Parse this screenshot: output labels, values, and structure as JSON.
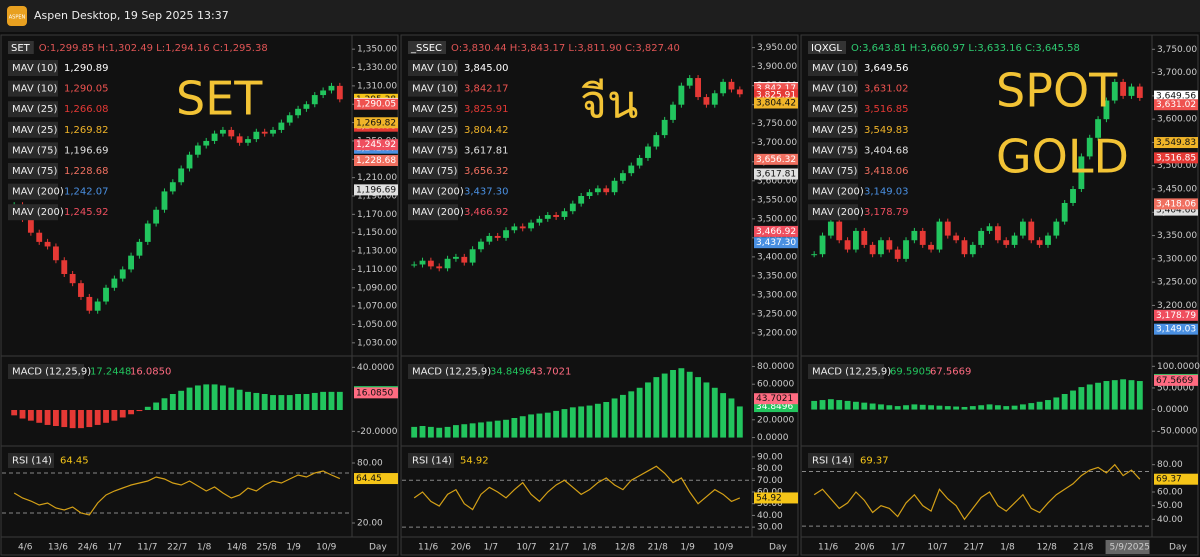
{
  "window": {
    "title": "Aspen Desktop, 19 Sep 2025 13:37",
    "logo": "ASPEN"
  },
  "panels": [
    {
      "symbol": "SET",
      "ohlc": "O:1,299.85 H:1,302.49 L:1,294.16 C:1,295.38",
      "ohlc_color": "#e05555",
      "big_label": [
        "SET"
      ],
      "close": {
        "value": 1295.38,
        "label": "1,295.38",
        "color": "#f5c518"
      },
      "mav": [
        {
          "name": "MAV (10)",
          "label": "1,290.89",
          "value": 1290.89,
          "color": "#ffffff"
        },
        {
          "name": "MAV (10)",
          "label": "1,290.05",
          "value": 1290.05,
          "color": "#ef5350"
        },
        {
          "name": "MAV (25)",
          "label": "1,266.08",
          "value": 1266.08,
          "color": "#e53935"
        },
        {
          "name": "MAV (25)",
          "label": "1,269.82",
          "value": 1269.82,
          "color": "#f0b429"
        },
        {
          "name": "MAV (75)",
          "label": "1,196.69",
          "value": 1196.69,
          "color": "#e0e0e0"
        },
        {
          "name": "MAV (75)",
          "label": "1,228.68",
          "value": 1228.68,
          "color": "#f07060"
        },
        {
          "name": "MAV (200)",
          "label": "1,242.07",
          "value": 1242.07,
          "color": "#4a90e2"
        },
        {
          "name": "MAV (200)",
          "label": "1,245.92",
          "value": 1245.92,
          "color": "#ef4f5f"
        }
      ],
      "ylim": [
        1020,
        1360
      ],
      "yticks": [
        {
          "value": 1350,
          "label": "1,350.00"
        },
        {
          "value": 1330,
          "label": "1,330.00"
        },
        {
          "value": 1310,
          "label": "1,310.00"
        },
        {
          "value": 1290,
          "label": "1,290.00"
        },
        {
          "value": 1270,
          "label": "1,270.00"
        },
        {
          "value": 1250,
          "label": "1,250.00"
        },
        {
          "value": 1230,
          "label": "1,230.00"
        },
        {
          "value": 1210,
          "label": "1,210.00"
        },
        {
          "value": 1190,
          "label": "1,190.00"
        },
        {
          "value": 1170,
          "label": "1,170.00"
        },
        {
          "value": 1150,
          "label": "1,150.00"
        },
        {
          "value": 1130,
          "label": "1,130.00"
        },
        {
          "value": 1110,
          "label": "1,110.00"
        },
        {
          "value": 1090,
          "label": "1,090.00"
        },
        {
          "value": 1070,
          "label": "1,070.00"
        },
        {
          "value": 1050,
          "label": "1,050.00"
        },
        {
          "value": 1030,
          "label": "1,030.00"
        }
      ],
      "closes": [
        1180,
        1165,
        1150,
        1140,
        1135,
        1120,
        1105,
        1095,
        1080,
        1065,
        1075,
        1090,
        1100,
        1110,
        1125,
        1140,
        1160,
        1175,
        1195,
        1205,
        1220,
        1235,
        1245,
        1250,
        1258,
        1262,
        1255,
        1248,
        1252,
        1260,
        1258,
        1262,
        1270,
        1278,
        1285,
        1290,
        1300,
        1305,
        1310,
        1295.38
      ],
      "macd": {
        "name": "MACD (12,25,9)",
        "macd": {
          "value": 17.2448,
          "label": "17.2448"
        },
        "signal": {
          "value": 16.085,
          "label": "16.0850"
        },
        "ylim": [
          -30,
          45
        ],
        "yticks": [
          {
            "value": 40,
            "label": "40.0000"
          },
          {
            "value": -20,
            "label": "-20.0000"
          }
        ],
        "hist": [
          -5,
          -8,
          -10,
          -12,
          -14,
          -15,
          -16,
          -17,
          -17,
          -16,
          -14,
          -12,
          -10,
          -7,
          -4,
          -1,
          3,
          7,
          11,
          15,
          18,
          21,
          23,
          24,
          24,
          23,
          21,
          19,
          17,
          16,
          15,
          14,
          14,
          14,
          15,
          15,
          16,
          17,
          17,
          17
        ]
      },
      "rsi": {
        "name": "RSI (14)",
        "value": {
          "value": 64.45,
          "label": "64.45"
        },
        "ylim": [
          10,
          92
        ],
        "yticks": [
          {
            "value": 80,
            "label": "80.00"
          },
          {
            "value": 20,
            "label": "20.00"
          }
        ],
        "bands": [
          70,
          30
        ],
        "values": [
          50,
          45,
          42,
          38,
          40,
          35,
          33,
          36,
          30,
          28,
          40,
          48,
          52,
          55,
          58,
          60,
          62,
          66,
          64,
          60,
          58,
          62,
          57,
          52,
          56,
          50,
          45,
          48,
          55,
          52,
          58,
          62,
          60,
          64,
          68,
          66,
          70,
          72,
          68,
          64.45
        ]
      },
      "x_labels": [
        "4/6",
        "13/6",
        "24/6",
        "1/7",
        "11/7",
        "22/7",
        "1/8",
        "14/8",
        "25/8",
        "1/9",
        "10/9"
      ],
      "x_unit": "Day"
    },
    {
      "symbol": "_SSEC",
      "ohlc": "O:3,830.44 H:3,843.17 L:3,811.90 C:3,827.40",
      "ohlc_color": "#e05555",
      "big_label": [
        "จีน"
      ],
      "close": {
        "value": 3827.4,
        "label": "3,827.40",
        "color": "#f5c518"
      },
      "mav": [
        {
          "name": "MAV (10)",
          "label": "3,845.00",
          "value": 3845,
          "color": "#ffffff"
        },
        {
          "name": "MAV (10)",
          "label": "3,842.17",
          "value": 3842.17,
          "color": "#ef5350"
        },
        {
          "name": "MAV (25)",
          "label": "3,825.91",
          "value": 3825.91,
          "color": "#e53935"
        },
        {
          "name": "MAV (25)",
          "label": "3,804.42",
          "value": 3804.42,
          "color": "#f0b429"
        },
        {
          "name": "MAV (75)",
          "label": "3,617.81",
          "value": 3617.81,
          "color": "#e0e0e0"
        },
        {
          "name": "MAV (75)",
          "label": "3,656.32",
          "value": 3656.32,
          "color": "#f07060"
        },
        {
          "name": "MAV (200)",
          "label": "3,437.30",
          "value": 3437.3,
          "color": "#4a90e2"
        },
        {
          "name": "MAV (200)",
          "label": "3,466.92",
          "value": 3466.92,
          "color": "#ef4f5f"
        }
      ],
      "ylim": [
        3150,
        3970
      ],
      "yticks": [
        {
          "value": 3950,
          "label": "3,950.00"
        },
        {
          "value": 3900,
          "label": "3,900.00"
        },
        {
          "value": 3850,
          "label": "3,850.00"
        },
        {
          "value": 3800,
          "label": "3,800.00"
        },
        {
          "value": 3750,
          "label": "3,750.00"
        },
        {
          "value": 3700,
          "label": "3,700.00"
        },
        {
          "value": 3650,
          "label": "3,650.00"
        },
        {
          "value": 3600,
          "label": "3,600.00"
        },
        {
          "value": 3550,
          "label": "3,550.00"
        },
        {
          "value": 3500,
          "label": "3,500.00"
        },
        {
          "value": 3450,
          "label": "3,450.00"
        },
        {
          "value": 3400,
          "label": "3,400.00"
        },
        {
          "value": 3350,
          "label": "3,350.00"
        },
        {
          "value": 3300,
          "label": "3,300.00"
        },
        {
          "value": 3250,
          "label": "3,250.00"
        },
        {
          "value": 3200,
          "label": "3,200.00"
        }
      ],
      "closes": [
        3380,
        3390,
        3375,
        3370,
        3395,
        3400,
        3385,
        3420,
        3440,
        3455,
        3450,
        3470,
        3480,
        3475,
        3490,
        3500,
        3510,
        3505,
        3520,
        3540,
        3560,
        3570,
        3580,
        3570,
        3600,
        3620,
        3640,
        3660,
        3690,
        3720,
        3760,
        3800,
        3850,
        3870,
        3820,
        3800,
        3830,
        3860,
        3840,
        3827.4
      ],
      "macd": {
        "name": "MACD (12,25,9)",
        "macd": {
          "value": 34.8496,
          "label": "34.8496"
        },
        "signal": {
          "value": 43.7021,
          "label": "43.7021"
        },
        "ylim": [
          -5,
          85
        ],
        "yticks": [
          {
            "value": 80,
            "label": "80.0000"
          },
          {
            "value": 60,
            "label": "60.0000"
          },
          {
            "value": 20,
            "label": "20.0000"
          },
          {
            "value": 0,
            "label": "0.0000"
          }
        ],
        "hist": [
          12,
          13,
          12,
          11,
          12,
          14,
          15,
          16,
          17,
          18,
          19,
          20,
          22,
          24,
          26,
          27,
          28,
          30,
          32,
          34,
          35,
          36,
          38,
          40,
          44,
          48,
          52,
          56,
          62,
          68,
          72,
          76,
          78,
          74,
          68,
          62,
          56,
          50,
          44,
          35
        ]
      },
      "rsi": {
        "name": "RSI (14)",
        "value": {
          "value": 54.92,
          "label": "54.92"
        },
        "ylim": [
          25,
          95
        ],
        "yticks": [
          {
            "value": 90,
            "label": "90.00"
          },
          {
            "value": 80,
            "label": "80.00"
          },
          {
            "value": 70,
            "label": "70.00"
          },
          {
            "value": 60,
            "label": "60.00"
          },
          {
            "value": 50,
            "label": "50.00"
          },
          {
            "value": 40,
            "label": "40.00"
          },
          {
            "value": 30,
            "label": "30.00"
          }
        ],
        "bands": [
          70,
          30
        ],
        "values": [
          55,
          60,
          52,
          48,
          58,
          62,
          50,
          45,
          58,
          64,
          60,
          55,
          62,
          68,
          58,
          52,
          60,
          66,
          70,
          64,
          58,
          62,
          68,
          72,
          66,
          62,
          70,
          74,
          78,
          82,
          76,
          68,
          72,
          60,
          50,
          56,
          62,
          58,
          52,
          54.92
        ]
      },
      "x_labels": [
        "11/6",
        "20/6",
        "1/7",
        "10/7",
        "21/7",
        "1/8",
        "12/8",
        "21/8",
        "1/9",
        "10/9"
      ],
      "x_unit": "Day"
    },
    {
      "symbol": "IQXGL",
      "ohlc": "O:3,643.81 H:3,660.97 L:3,633.16 C:3,645.58",
      "ohlc_color": "#2ecc71",
      "big_label": [
        "SPOT",
        "GOLD"
      ],
      "close": {
        "value": 3645.58,
        "label": "3,645.58",
        "color": "#f5c518"
      },
      "mav": [
        {
          "name": "MAV (10)",
          "label": "3,649.56",
          "value": 3649.56,
          "color": "#ffffff"
        },
        {
          "name": "MAV (10)",
          "label": "3,631.02",
          "value": 3631.02,
          "color": "#ef5350"
        },
        {
          "name": "MAV (25)",
          "label": "3,516.85",
          "value": 3516.85,
          "color": "#e53935"
        },
        {
          "name": "MAV (25)",
          "label": "3,549.83",
          "value": 3549.83,
          "color": "#f0b429"
        },
        {
          "name": "MAV (75)",
          "label": "3,404.68",
          "value": 3404.68,
          "color": "#e0e0e0"
        },
        {
          "name": "MAV (75)",
          "label": "3,418.06",
          "value": 3418.06,
          "color": "#f07060"
        },
        {
          "name": "MAV (200)",
          "label": "3,149.03",
          "value": 3149.03,
          "color": "#4a90e2"
        },
        {
          "name": "MAV (200)",
          "label": "3,178.79",
          "value": 3178.79,
          "color": "#ef4f5f"
        }
      ],
      "ylim": [
        3100,
        3770
      ],
      "yticks": [
        {
          "value": 3750,
          "label": "3,750.00"
        },
        {
          "value": 3700,
          "label": "3,700.00"
        },
        {
          "value": 3650,
          "label": "3,650.00"
        },
        {
          "value": 3600,
          "label": "3,600.00"
        },
        {
          "value": 3550,
          "label": "3,550.00"
        },
        {
          "value": 3500,
          "label": "3,500.00"
        },
        {
          "value": 3450,
          "label": "3,450.00"
        },
        {
          "value": 3400,
          "label": "3,400.00"
        },
        {
          "value": 3350,
          "label": "3,350.00"
        },
        {
          "value": 3300,
          "label": "3,300.00"
        },
        {
          "value": 3250,
          "label": "3,250.00"
        },
        {
          "value": 3200,
          "label": "3,200.00"
        }
      ],
      "closes": [
        3310,
        3350,
        3380,
        3340,
        3320,
        3360,
        3330,
        3310,
        3340,
        3320,
        3300,
        3340,
        3360,
        3330,
        3320,
        3380,
        3350,
        3340,
        3310,
        3330,
        3360,
        3370,
        3340,
        3330,
        3350,
        3380,
        3340,
        3330,
        3350,
        3380,
        3420,
        3450,
        3520,
        3560,
        3600,
        3640,
        3680,
        3650,
        3670,
        3645.58
      ],
      "macd": {
        "name": "MACD (12,25,9)",
        "macd": {
          "value": 69.5905,
          "label": "69.5905"
        },
        "signal": {
          "value": 67.5669,
          "label": "67.5669"
        },
        "ylim": [
          -75,
          110
        ],
        "yticks": [
          {
            "value": 100,
            "label": "100.0000"
          },
          {
            "value": 50,
            "label": "50.0000"
          },
          {
            "value": 0,
            "label": "0.0000"
          },
          {
            "value": -50,
            "label": "-50.0000"
          }
        ],
        "hist": [
          20,
          22,
          24,
          22,
          20,
          18,
          16,
          14,
          12,
          10,
          8,
          10,
          12,
          11,
          10,
          9,
          8,
          7,
          6,
          8,
          10,
          12,
          10,
          8,
          9,
          12,
          15,
          18,
          22,
          28,
          36,
          44,
          52,
          58,
          62,
          66,
          68,
          70,
          68,
          66
        ]
      },
      "rsi": {
        "name": "RSI (14)",
        "value": {
          "value": 69.37,
          "label": "69.37"
        },
        "ylim": [
          30,
          90
        ],
        "yticks": [
          {
            "value": 80,
            "label": "80.00"
          },
          {
            "value": 60,
            "label": "60.00"
          },
          {
            "value": 50,
            "label": "50.00"
          },
          {
            "value": 40,
            "label": "40.00"
          }
        ],
        "bands": [
          75,
          35
        ],
        "values": [
          58,
          62,
          55,
          48,
          52,
          60,
          54,
          45,
          50,
          48,
          42,
          52,
          58,
          50,
          46,
          62,
          55,
          50,
          40,
          48,
          56,
          60,
          50,
          46,
          52,
          58,
          48,
          45,
          52,
          58,
          62,
          66,
          72,
          76,
          78,
          74,
          80,
          72,
          76,
          69.37
        ]
      },
      "x_labels": [
        "11/6",
        "20/6",
        "1/7",
        "10/7",
        "21/7",
        "1/8",
        "12/8",
        "21/8",
        "5/9/2025"
      ],
      "x_unit": "Day"
    }
  ]
}
